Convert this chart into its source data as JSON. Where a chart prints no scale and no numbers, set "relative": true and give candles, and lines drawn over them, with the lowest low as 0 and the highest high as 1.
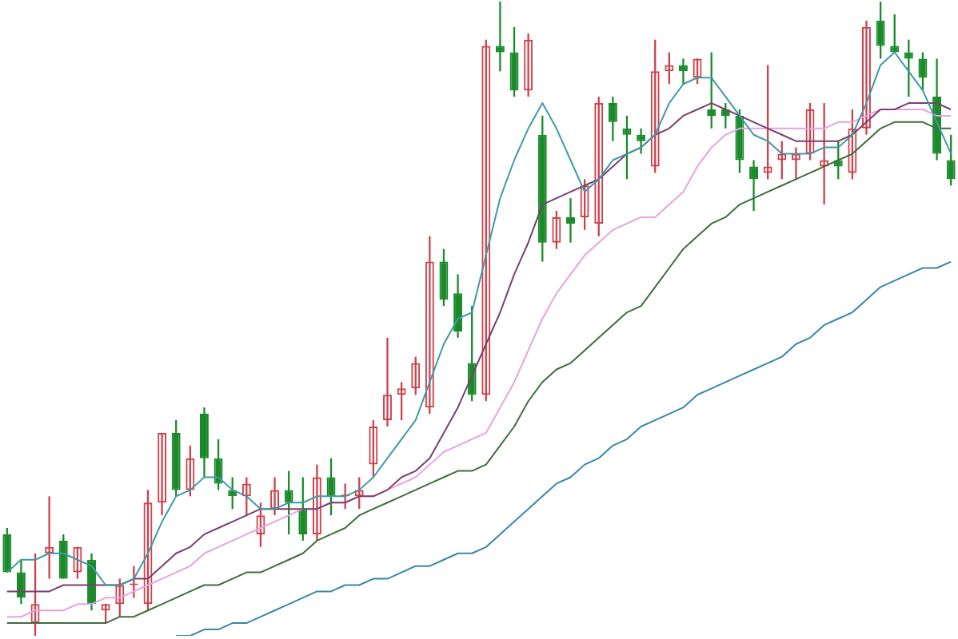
{
  "chart_data": {
    "type": "candlestick",
    "relative": true,
    "marker": "none",
    "categories": [
      null,
      null,
      null,
      null,
      null,
      null,
      null,
      null,
      null,
      null,
      null,
      null,
      null,
      null,
      null,
      null,
      null,
      null,
      null,
      null,
      null,
      null,
      null,
      null,
      null,
      null,
      null,
      null,
      null,
      null,
      null,
      null,
      null,
      null,
      null,
      null,
      null,
      null,
      null,
      null,
      null,
      null,
      null,
      null,
      null,
      null,
      null,
      null,
      null,
      null,
      null,
      null,
      null,
      null,
      null,
      null,
      null,
      null,
      null,
      null,
      null,
      null,
      null,
      null,
      null,
      null,
      null,
      null
    ],
    "ohlc": [
      [
        0.16,
        0.17,
        0.1,
        0.1
      ],
      [
        0.1,
        0.12,
        0.05,
        0.06
      ],
      [
        0.02,
        0.13,
        0,
        0.05
      ],
      [
        0.13,
        0.22,
        0.09,
        0.14
      ],
      [
        0.15,
        0.16,
        0.09,
        0.09
      ],
      [
        0.1,
        0.14,
        0.09,
        0.14
      ],
      [
        0.12,
        0.13,
        0.04,
        0.05
      ],
      [
        0.04,
        0.05,
        0.02,
        0.05
      ],
      [
        0.05,
        0.09,
        0.03,
        0.08
      ],
      [
        0.08,
        0.11,
        0.06,
        0.08
      ],
      [
        0.05,
        0.23,
        0.04,
        0.21
      ],
      [
        0.21,
        0.32,
        0.19,
        0.32
      ],
      [
        0.32,
        0.34,
        0.22,
        0.23
      ],
      [
        0.23,
        0.3,
        0.22,
        0.28
      ],
      [
        0.35,
        0.36,
        0.25,
        0.28
      ],
      [
        0.28,
        0.31,
        0.23,
        0.24
      ],
      [
        0.23,
        0.25,
        0.2,
        0.22
      ],
      [
        0.22,
        0.25,
        0.19,
        0.24
      ],
      [
        0.16,
        0.21,
        0.14,
        0.19
      ],
      [
        0.2,
        0.25,
        0.19,
        0.23
      ],
      [
        0.23,
        0.26,
        0.16,
        0.21
      ],
      [
        0.2,
        0.25,
        0.15,
        0.16
      ],
      [
        0.16,
        0.27,
        0.15,
        0.25
      ],
      [
        0.25,
        0.28,
        0.19,
        0.22
      ],
      [
        0.22,
        0.24,
        0.2,
        0.22
      ],
      [
        0.22,
        0.25,
        0.2,
        0.23
      ],
      [
        0.27,
        0.34,
        0.25,
        0.33
      ],
      [
        0.34,
        0.47,
        0.33,
        0.38
      ],
      [
        0.38,
        0.4,
        0.34,
        0.39
      ],
      [
        0.39,
        0.44,
        0.38,
        0.43
      ],
      [
        0.36,
        0.63,
        0.35,
        0.59
      ],
      [
        0.59,
        0.61,
        0.52,
        0.53
      ],
      [
        0.54,
        0.57,
        0.47,
        0.48
      ],
      [
        0.43,
        0.52,
        0.37,
        0.38
      ],
      [
        0.38,
        0.94,
        0.37,
        0.93
      ],
      [
        0.93,
        1,
        0.89,
        0.92
      ],
      [
        0.92,
        0.96,
        0.85,
        0.86
      ],
      [
        0.86,
        0.95,
        0.85,
        0.94
      ],
      [
        0.79,
        0.82,
        0.59,
        0.62
      ],
      [
        0.62,
        0.67,
        0.61,
        0.66
      ],
      [
        0.66,
        0.69,
        0.62,
        0.65
      ],
      [
        0.66,
        0.72,
        0.64,
        0.71
      ],
      [
        0.65,
        0.85,
        0.63,
        0.84
      ],
      [
        0.84,
        0.85,
        0.78,
        0.81
      ],
      [
        0.8,
        0.82,
        0.72,
        0.79
      ],
      [
        0.79,
        0.8,
        0.76,
        0.78
      ],
      [
        0.74,
        0.94,
        0.73,
        0.89
      ],
      [
        0.89,
        0.92,
        0.87,
        0.9
      ],
      [
        0.9,
        0.91,
        0.87,
        0.89
      ],
      [
        0.88,
        0.91,
        0.87,
        0.91
      ],
      [
        0.83,
        0.92,
        0.8,
        0.82
      ],
      [
        0.83,
        0.84,
        0.8,
        0.82
      ],
      [
        0.82,
        0.83,
        0.73,
        0.75
      ],
      [
        0.74,
        0.75,
        0.67,
        0.72
      ],
      [
        0.73,
        0.9,
        0.72,
        0.74
      ],
      [
        0.75,
        0.78,
        0.72,
        0.76
      ],
      [
        0.75,
        0.77,
        0.72,
        0.76
      ],
      [
        0.76,
        0.84,
        0.75,
        0.83
      ],
      [
        0.74,
        0.84,
        0.68,
        0.75
      ],
      [
        0.75,
        0.78,
        0.72,
        0.74
      ],
      [
        0.73,
        0.83,
        0.72,
        0.8
      ],
      [
        0.8,
        0.97,
        0.79,
        0.96
      ],
      [
        0.97,
        1,
        0.91,
        0.93
      ],
      [
        0.93,
        0.98,
        0.92,
        0.92
      ],
      [
        0.92,
        0.94,
        0.85,
        0.91
      ],
      [
        0.91,
        0.92,
        0.86,
        0.88
      ],
      [
        0.85,
        0.91,
        0.75,
        0.76
      ],
      [
        0.75,
        0.79,
        0.71,
        0.72
      ]
    ],
    "colors": [
      "#1a8a2a",
      "#1a8a2a",
      "#d0404a",
      "#d0404a",
      "#1a8a2a",
      "#d0404a",
      "#1a8a2a",
      "#d0404a",
      "#d0404a",
      "#d0404a",
      "#d0404a",
      "#d0404a",
      "#1a8a2a",
      "#d0404a",
      "#1a8a2a",
      "#1a8a2a",
      "#1a8a2a",
      "#d0404a",
      "#d0404a",
      "#d0404a",
      "#1a8a2a",
      "#1a8a2a",
      "#d0404a",
      "#1a8a2a",
      "#d0404a",
      "#d0404a",
      "#d0404a",
      "#d0404a",
      "#d0404a",
      "#d0404a",
      "#d0404a",
      "#1a8a2a",
      "#1a8a2a",
      "#1a8a2a",
      "#d0404a",
      "#1a8a2a",
      "#1a8a2a",
      "#d0404a",
      "#1a8a2a",
      "#d0404a",
      "#1a8a2a",
      "#d0404a",
      "#d0404a",
      "#1a8a2a",
      "#1a8a2a",
      "#1a8a2a",
      "#d0404a",
      "#d0404a",
      "#1a8a2a",
      "#d0404a",
      "#1a8a2a",
      "#1a8a2a",
      "#1a8a2a",
      "#1a8a2a",
      "#d0404a",
      "#d0404a",
      "#d0404a",
      "#d0404a",
      "#d0404a",
      "#1a8a2a",
      "#d0404a",
      "#d0404a",
      "#1a8a2a",
      "#1a8a2a",
      "#1a8a2a",
      "#1a8a2a",
      "#1a8a2a",
      "#1a8a2a"
    ],
    "series": [
      {
        "type": "line",
        "color": "#3f9aa8",
        "values": [
          0.1,
          0.12,
          0.12,
          0.13,
          0.13,
          0.12,
          0.11,
          0.08,
          0.08,
          0.09,
          0.13,
          0.18,
          0.22,
          0.23,
          0.25,
          0.25,
          0.23,
          0.22,
          0.2,
          0.2,
          0.21,
          0.21,
          0.22,
          0.22,
          0.22,
          0.23,
          0.25,
          0.28,
          0.31,
          0.34,
          0.4,
          0.46,
          0.5,
          0.51,
          0.6,
          0.69,
          0.75,
          0.8,
          0.84,
          0.8,
          0.75,
          0.7,
          0.72,
          0.75,
          0.76,
          0.77,
          0.79,
          0.84,
          0.87,
          0.88,
          0.88,
          0.85,
          0.82,
          0.79,
          0.78,
          0.76,
          0.76,
          0.76,
          0.77,
          0.77,
          0.79,
          0.84,
          0.9,
          0.92,
          0.89,
          0.86,
          0.81,
          0.76
        ]
      },
      {
        "type": "line",
        "color": "#7a3f6e",
        "values": [
          0.07,
          0.07,
          0.07,
          0.07,
          0.08,
          0.08,
          0.08,
          0.08,
          0.08,
          0.09,
          0.09,
          0.11,
          0.13,
          0.14,
          0.16,
          0.17,
          0.18,
          0.19,
          0.2,
          0.2,
          0.2,
          0.2,
          0.2,
          0.21,
          0.21,
          0.22,
          0.22,
          0.23,
          0.25,
          0.26,
          0.28,
          0.32,
          0.36,
          0.41,
          0.46,
          0.51,
          0.57,
          0.62,
          0.68,
          0.69,
          0.7,
          0.71,
          0.72,
          0.74,
          0.76,
          0.77,
          0.79,
          0.8,
          0.82,
          0.83,
          0.84,
          0.83,
          0.82,
          0.81,
          0.8,
          0.79,
          0.78,
          0.78,
          0.78,
          0.78,
          0.79,
          0.81,
          0.83,
          0.83,
          0.84,
          0.84,
          0.84,
          0.83
        ]
      },
      {
        "type": "line",
        "color": "#e6a3e0",
        "values": [
          0.03,
          0.03,
          0.04,
          0.04,
          0.04,
          0.05,
          0.05,
          0.06,
          0.06,
          0.07,
          0.08,
          0.09,
          0.1,
          0.11,
          0.13,
          0.14,
          0.15,
          0.16,
          0.17,
          0.18,
          0.19,
          0.2,
          0.2,
          0.21,
          0.21,
          0.22,
          0.22,
          0.23,
          0.24,
          0.25,
          0.27,
          0.29,
          0.3,
          0.31,
          0.32,
          0.36,
          0.4,
          0.45,
          0.5,
          0.54,
          0.57,
          0.6,
          0.62,
          0.64,
          0.65,
          0.66,
          0.66,
          0.68,
          0.7,
          0.74,
          0.77,
          0.79,
          0.8,
          0.8,
          0.8,
          0.8,
          0.8,
          0.8,
          0.8,
          0.81,
          0.81,
          0.82,
          0.83,
          0.83,
          0.83,
          0.83,
          0.82,
          0.82
        ]
      },
      {
        "type": "line",
        "color": "#3d6e3d",
        "values": [
          0.02,
          0.02,
          0.02,
          0.02,
          0.02,
          0.02,
          0.02,
          0.02,
          0.03,
          0.03,
          0.04,
          0.05,
          0.06,
          0.07,
          0.08,
          0.08,
          0.09,
          0.1,
          0.1,
          0.11,
          0.12,
          0.13,
          0.15,
          0.16,
          0.17,
          0.19,
          0.2,
          0.21,
          0.22,
          0.23,
          0.24,
          0.25,
          0.26,
          0.26,
          0.27,
          0.3,
          0.33,
          0.37,
          0.4,
          0.42,
          0.43,
          0.45,
          0.47,
          0.49,
          0.51,
          0.52,
          0.55,
          0.58,
          0.61,
          0.63,
          0.65,
          0.66,
          0.68,
          0.69,
          0.7,
          0.71,
          0.72,
          0.73,
          0.74,
          0.75,
          0.76,
          0.78,
          0.8,
          0.81,
          0.81,
          0.81,
          0.8,
          0.8
        ]
      },
      {
        "type": "line",
        "color": "#3a86a8",
        "values": [
          null,
          null,
          null,
          null,
          null,
          null,
          null,
          null,
          null,
          null,
          null,
          null,
          0.0,
          0.0,
          0.01,
          0.01,
          0.02,
          0.02,
          0.03,
          0.04,
          0.05,
          0.06,
          0.07,
          0.07,
          0.08,
          0.08,
          0.09,
          0.09,
          0.1,
          0.11,
          0.11,
          0.12,
          0.13,
          0.13,
          0.14,
          0.16,
          0.18,
          0.2,
          0.22,
          0.24,
          0.25,
          0.27,
          0.28,
          0.3,
          0.31,
          0.33,
          0.34,
          0.35,
          0.36,
          0.38,
          0.39,
          0.4,
          0.41,
          0.42,
          0.43,
          0.44,
          0.46,
          0.47,
          0.49,
          0.5,
          0.51,
          0.53,
          0.55,
          0.56,
          0.57,
          0.58,
          0.58,
          0.59
        ]
      }
    ]
  }
}
